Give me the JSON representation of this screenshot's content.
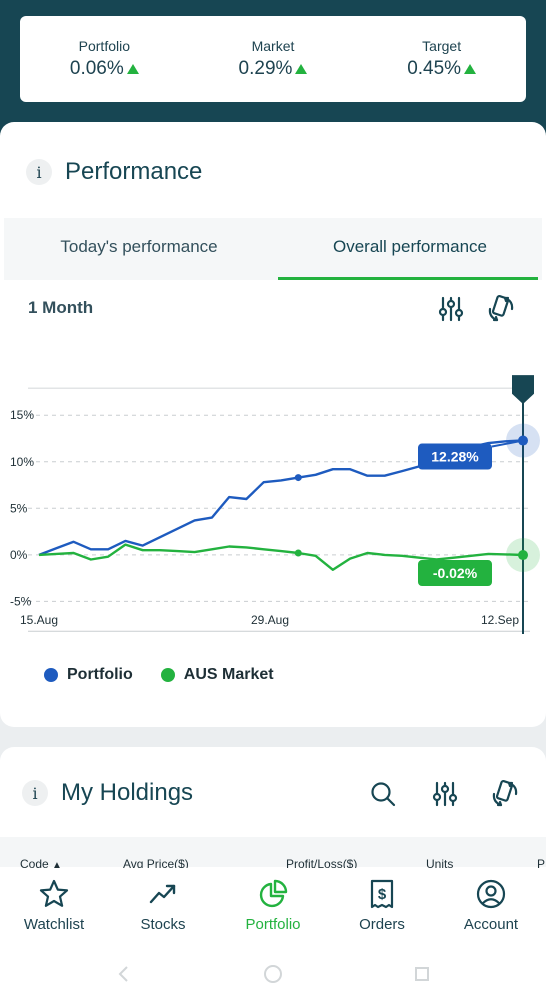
{
  "summary": [
    {
      "label": "Portfolio",
      "value": "0.06%"
    },
    {
      "label": "Market",
      "value": "0.29%"
    },
    {
      "label": "Target",
      "value": "0.45%"
    }
  ],
  "performance": {
    "info": "i",
    "title": "Performance",
    "tabs": {
      "today": "Today's performance",
      "overall": "Overall performance"
    },
    "range": "1 Month"
  },
  "chart_data": {
    "type": "line",
    "x_ticks": [
      "15.Aug",
      "29.Aug",
      "12.Sep"
    ],
    "y_ticks": [
      "15%",
      "10%",
      "5%",
      "0%",
      "-5%"
    ],
    "ylim": [
      -8.5,
      20.5
    ],
    "grid": true,
    "series": [
      {
        "name": "Portfolio",
        "color": "#1e5bbf",
        "end_label": "12.28%",
        "values": [
          0.0,
          0.7,
          1.4,
          0.6,
          0.6,
          1.5,
          1.0,
          1.9,
          2.8,
          3.7,
          4.0,
          6.2,
          6.0,
          7.8,
          8.0,
          8.3,
          8.6,
          9.2,
          9.2,
          8.5,
          8.5,
          9.0,
          9.5,
          10.0,
          10.8,
          11.6,
          12.0,
          12.2,
          12.28
        ]
      },
      {
        "name": "AUS Market",
        "color": "#23b23f",
        "end_label": "-0.02%",
        "values": [
          0.0,
          0.1,
          0.2,
          -0.5,
          -0.2,
          1.1,
          0.5,
          0.5,
          0.4,
          0.3,
          0.6,
          0.9,
          0.8,
          0.6,
          0.4,
          0.2,
          -0.1,
          -1.6,
          -0.4,
          0.2,
          0.0,
          -0.1,
          -0.3,
          -0.5,
          -0.3,
          -0.1,
          0.1,
          0.05,
          -0.02
        ]
      }
    ]
  },
  "legend": [
    "Portfolio",
    "AUS Market"
  ],
  "holdings": {
    "info": "i",
    "title": "My Holdings",
    "columns": [
      "Code",
      "Avg Price($)",
      "Profit/Loss($)",
      "Units",
      "P"
    ]
  },
  "nav": [
    {
      "label": "Watchlist",
      "icon": "star-icon"
    },
    {
      "label": "Stocks",
      "icon": "trend-up-icon"
    },
    {
      "label": "Portfolio",
      "icon": "pie-chart-icon",
      "active": true
    },
    {
      "label": "Orders",
      "icon": "receipt-dollar-icon"
    },
    {
      "label": "Account",
      "icon": "user-circle-icon"
    }
  ]
}
